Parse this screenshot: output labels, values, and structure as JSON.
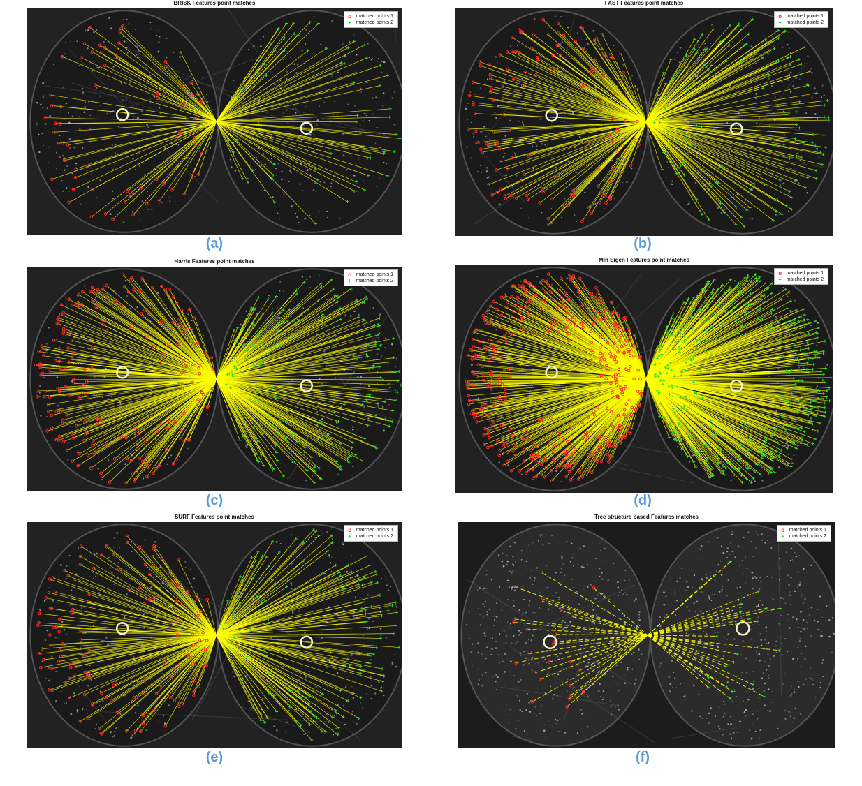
{
  "colors": {
    "match_line": "#ffff00",
    "points1": "#ff2a2a",
    "points2": "#2ddc2d",
    "caption": "#5b9bd5"
  },
  "legend": {
    "points1_label": "matched points 1",
    "points2_label": "matched points 2",
    "points1_marker": "o",
    "points2_marker": "+"
  },
  "panels": [
    {
      "key": "a",
      "title": "BRISK Features point matches",
      "caption": "(a)",
      "density": 70
    },
    {
      "key": "b",
      "title": "FAST Features point matches",
      "caption": "(b)",
      "density": 150
    },
    {
      "key": "c",
      "title": "Harris Features point matches",
      "caption": "(c)",
      "density": 230
    },
    {
      "key": "d",
      "title": "Min Eigen Features point matches",
      "caption": "(d)",
      "density": 520
    },
    {
      "key": "e",
      "title": "SURF Features point matches",
      "caption": "(e)",
      "density": 150
    },
    {
      "key": "f",
      "title": "Tree structure based Features matches",
      "caption": "(f)",
      "density": 26
    }
  ]
}
